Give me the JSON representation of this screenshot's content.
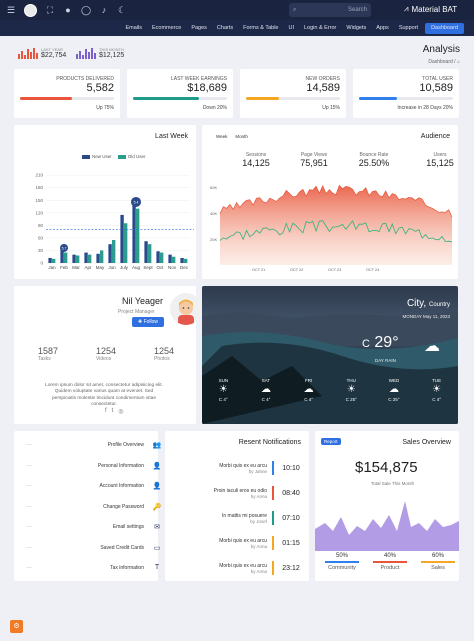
{
  "topbar": {
    "search_placeholder": "Search",
    "brand": "Material BAT"
  },
  "nav": [
    "Emails",
    "Ecommerce",
    "Pages",
    "Charts",
    "Forms & Table",
    "UI",
    "Login & Error",
    "Widgets",
    "Apps",
    "Support",
    "Dashboard"
  ],
  "page": {
    "title": "Analysis",
    "breadcrumb": "Dashboard"
  },
  "mini_stats": [
    {
      "label": "LAST YEAR",
      "value": "$22,754",
      "color": "#e8553a"
    },
    {
      "label": "THIS MONTH",
      "value": "$12,125",
      "color": "#7b61c9"
    }
  ],
  "stats": [
    {
      "title": "PRODUCTS DELIVERED",
      "value": "5,582",
      "footer": "Up 75%",
      "color": "#e8553a",
      "progress": 0.55
    },
    {
      "title": "LAST WEEK EARNINGS",
      "value": "$18,689",
      "footer": "Down 20%",
      "color": "#1e9b8a",
      "progress": 0.7
    },
    {
      "title": "NEW ORDERS",
      "value": "14,589",
      "footer": "Up 15%",
      "color": "#f5a623",
      "progress": 0.35
    },
    {
      "title": "TOTAL USER",
      "value": "10,589",
      "footer": "Increase in 28 Days 20%",
      "color": "#2f80ed",
      "progress": 0.4
    }
  ],
  "last_week": {
    "title": "Last Week",
    "legend_new": "New User",
    "legend_old": "Old User",
    "bubble_jul": "5.4",
    "bubble_feb": "5.7"
  },
  "audience": {
    "title": "Audience",
    "tabs": [
      "Week",
      "Month"
    ],
    "stats": [
      {
        "label": "Sessions",
        "value": "14,125"
      },
      {
        "label": "Page Views",
        "value": "75,951"
      },
      {
        "label": "Bounce Rate",
        "value": "25.50%"
      },
      {
        "label": "Users",
        "value": "15,125"
      }
    ],
    "y_ticks": [
      "60K",
      "40K",
      "20K"
    ],
    "x_ticks": [
      "OCT 21",
      "OCT 22",
      "OCT 23",
      "OCT 24"
    ]
  },
  "profile": {
    "name": "Nil Yeager",
    "role": "Project Manager",
    "follow": "Follow",
    "stats": [
      {
        "value": "1587",
        "label": "Tasks"
      },
      {
        "value": "1254",
        "label": "Videos"
      },
      {
        "value": "1254",
        "label": "Photos"
      }
    ],
    "bio": "Lorem ipsum dolor sit amet, consectetur adipisicing elit. Quidem voluptate varius quam at eveniet. Sed perspiciatis molestie tincidunt condimentum vitae consectetur."
  },
  "weather": {
    "city": "City,",
    "country": "Country",
    "date": "MONDAY May 11, 2023",
    "temp": "29°",
    "unit": "C",
    "condition": "DAY RAIN",
    "days": [
      {
        "day": "SUN",
        "icon": "☀",
        "temp": "C 4°"
      },
      {
        "day": "SAT",
        "icon": "☁",
        "temp": "C 4°"
      },
      {
        "day": "FRI",
        "icon": "☁",
        "temp": "C 4°"
      },
      {
        "day": "THU",
        "icon": "☀",
        "temp": "C 25°"
      },
      {
        "day": "WED",
        "icon": "☁",
        "temp": "C 25°"
      },
      {
        "day": "TUE",
        "icon": "☀",
        "temp": "C 4°"
      }
    ]
  },
  "menu": [
    {
      "label": "Profile Overview",
      "icon": "👥"
    },
    {
      "label": "Personal Information",
      "icon": "👤"
    },
    {
      "label": "Account Information",
      "icon": "👤"
    },
    {
      "label": "Change Password",
      "icon": "🔑"
    },
    {
      "label": "Email settings",
      "icon": "✉"
    },
    {
      "label": "Saved Credit Cards",
      "icon": "▭"
    },
    {
      "label": "Tax information",
      "icon": "T"
    }
  ],
  "notifications": {
    "title": "Resent Notifications",
    "items": [
      {
        "text": "Morbi quis ex eu arcu",
        "by": "by Jahne",
        "time": "10:10",
        "color": "#2f80ed"
      },
      {
        "text": "Proin iaculi eros eu odio",
        "by": "by Anna",
        "time": "08:40",
        "color": "#e8553a"
      },
      {
        "text": "In mattis mi posuere",
        "by": "by Josef",
        "time": "07:10",
        "color": "#1e9b8a"
      },
      {
        "text": "Morbi quis ex eu arcu",
        "by": "by Anna",
        "time": "01:15",
        "color": "#f5a623"
      },
      {
        "text": "Morbi quis ex eu arcu",
        "by": "by Anna",
        "time": "23:12",
        "color": "#f5a623"
      }
    ]
  },
  "sales": {
    "badge": "Report",
    "title": "Sales Overview",
    "amount": "$154,875",
    "subtitle": "Total Sale This Month",
    "legend": [
      {
        "pct": "50%",
        "name": "Community",
        "color": "#2f80ed"
      },
      {
        "pct": "40%",
        "name": "Product",
        "color": "#e8553a"
      },
      {
        "pct": "60%",
        "name": "Sales",
        "color": "#f5a623"
      }
    ]
  },
  "chart_data": [
    {
      "type": "bar",
      "categories": [
        "Jan",
        "Feb",
        "Mar",
        "Apr",
        "May",
        "Jun",
        "July",
        "Aug",
        "Sept",
        "Oct",
        "Nov",
        "Dec"
      ],
      "series": [
        {
          "name": "New User",
          "values": [
            12,
            32,
            20,
            25,
            22,
            45,
            115,
            140,
            52,
            28,
            20,
            12
          ]
        },
        {
          "name": "Old User",
          "values": [
            10,
            25,
            18,
            20,
            30,
            55,
            95,
            130,
            45,
            25,
            15,
            10
          ]
        }
      ],
      "ylim": [
        0,
        220
      ],
      "yticks": [
        0,
        30,
        60,
        90,
        120,
        150,
        180,
        210
      ],
      "colors": [
        "#2a4a8a",
        "#2a9d8f"
      ]
    },
    {
      "type": "area",
      "series": [
        {
          "name": "Sessions"
        },
        {
          "name": "Page Views"
        }
      ],
      "colors": [
        "#e8553a",
        "#2db37a"
      ]
    },
    {
      "type": "area",
      "colors": [
        "#a58be0"
      ]
    }
  ]
}
